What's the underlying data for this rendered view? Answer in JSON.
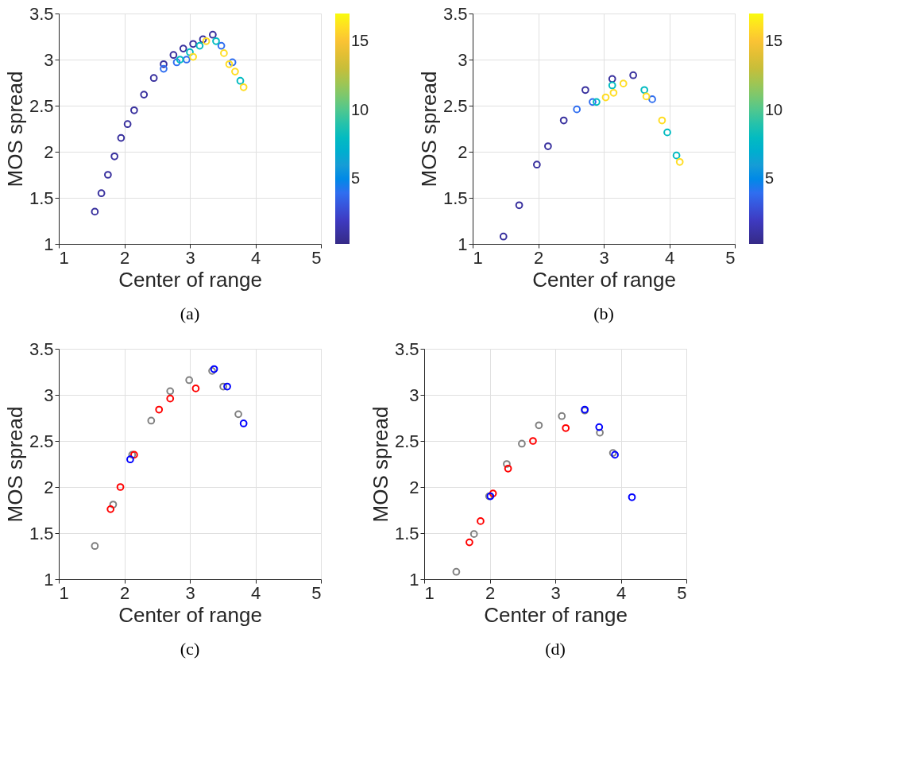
{
  "chart_data": [
    {
      "type": "scatter",
      "xlabel": "Center of range",
      "ylabel": "MOS spread",
      "annotations": [
        "(a)"
      ],
      "xlim": [
        1,
        5
      ],
      "ylim": [
        1,
        3.5
      ],
      "xticks": [
        1,
        2,
        3,
        4,
        5
      ],
      "yticks": [
        1,
        1.5,
        2,
        2.5,
        3,
        3.5
      ],
      "grid": true,
      "marker": "circle",
      "clim": [
        0.3,
        17
      ],
      "cticks": [
        5,
        10,
        15
      ],
      "x": [
        1.55,
        1.65,
        1.75,
        1.85,
        1.95,
        2.05,
        2.15,
        2.3,
        2.45,
        2.6,
        2.75,
        2.9,
        3.05,
        3.2,
        3.35,
        2.6,
        2.8,
        2.95,
        2.85,
        3.0,
        3.15,
        3.05,
        3.25,
        3.48,
        3.65,
        3.4,
        3.52,
        3.6,
        3.69,
        3.77,
        3.82
      ],
      "values": [
        1.35,
        1.55,
        1.75,
        1.95,
        2.15,
        2.3,
        2.45,
        2.62,
        2.8,
        2.95,
        3.05,
        3.12,
        3.17,
        3.22,
        3.27,
        2.9,
        2.97,
        3.0,
        3.0,
        3.08,
        3.15,
        3.03,
        3.2,
        3.15,
        2.97,
        3.2,
        3.07,
        2.95,
        2.87,
        2.77,
        2.7
      ],
      "cvalues": [
        1,
        1,
        1,
        1,
        1,
        1,
        1,
        1,
        1,
        1,
        1,
        1,
        1,
        1,
        1,
        4,
        4,
        4,
        8,
        8,
        8,
        16,
        16,
        4,
        4,
        8,
        16,
        16,
        16,
        8,
        16
      ]
    },
    {
      "type": "scatter",
      "xlabel": "Center of range",
      "ylabel": "MOS spread",
      "annotations": [
        "(b)"
      ],
      "xlim": [
        1,
        5
      ],
      "ylim": [
        1,
        3.5
      ],
      "xticks": [
        1,
        2,
        3,
        4,
        5
      ],
      "yticks": [
        1,
        1.5,
        2,
        2.5,
        3,
        3.5
      ],
      "grid": true,
      "marker": "circle",
      "clim": [
        0.3,
        17
      ],
      "cticks": [
        5,
        10,
        15
      ],
      "x": [
        1.47,
        1.71,
        1.98,
        2.15,
        2.39,
        2.72,
        3.13,
        3.45,
        2.59,
        2.83,
        2.89,
        3.13,
        3.03,
        3.15,
        3.3,
        3.62,
        3.74,
        3.65,
        3.89,
        3.97,
        4.11,
        4.16
      ],
      "values": [
        1.08,
        1.42,
        1.86,
        2.06,
        2.34,
        2.67,
        2.79,
        2.83,
        2.46,
        2.54,
        2.54,
        2.72,
        2.59,
        2.64,
        2.74,
        2.67,
        2.57,
        2.6,
        2.34,
        2.21,
        1.96,
        1.89
      ],
      "cvalues": [
        1,
        1,
        1,
        1,
        1,
        1,
        1,
        1,
        4,
        4,
        8,
        8,
        16,
        16,
        16,
        8,
        4,
        16,
        16,
        8,
        8,
        16
      ]
    },
    {
      "type": "scatter",
      "xlabel": "Center of range",
      "ylabel": "MOS spread",
      "annotations": [
        "(c)"
      ],
      "xlim": [
        1,
        5
      ],
      "ylim": [
        1,
        3.5
      ],
      "xticks": [
        1,
        2,
        3,
        4,
        5
      ],
      "yticks": [
        1,
        1.5,
        2,
        2.5,
        3,
        3.5
      ],
      "grid": true,
      "marker": "circle",
      "series": [
        {
          "color": "#808080",
          "x": [
            1.55,
            1.83,
            2.12,
            2.41,
            2.7,
            2.99,
            3.34,
            3.51,
            3.74
          ],
          "values": [
            1.36,
            1.81,
            2.35,
            2.72,
            3.04,
            3.16,
            3.26,
            3.09,
            2.79
          ]
        },
        {
          "color": "#ff0000",
          "x": [
            1.79,
            1.94,
            2.15,
            2.53,
            2.7,
            3.09
          ],
          "values": [
            1.76,
            2.0,
            2.35,
            2.84,
            2.96,
            3.07
          ]
        },
        {
          "color": "#0000ff",
          "x": [
            2.09,
            3.37,
            3.57,
            3.82
          ],
          "values": [
            2.3,
            3.28,
            3.09,
            2.69
          ]
        }
      ]
    },
    {
      "type": "scatter",
      "xlabel": "Center of range",
      "ylabel": "MOS spread",
      "annotations": [
        "(d)"
      ],
      "xlim": [
        1,
        5
      ],
      "ylim": [
        1,
        3.5
      ],
      "xticks": [
        1,
        2,
        3,
        4,
        5
      ],
      "yticks": [
        1,
        1.5,
        2,
        2.5,
        3,
        3.5
      ],
      "grid": true,
      "marker": "circle",
      "series": [
        {
          "color": "#808080",
          "x": [
            1.49,
            1.76,
            1.99,
            2.26,
            2.49,
            2.75,
            3.1,
            3.45,
            3.68,
            3.88
          ],
          "values": [
            1.08,
            1.49,
            1.9,
            2.25,
            2.47,
            2.67,
            2.77,
            2.83,
            2.59,
            2.37
          ]
        },
        {
          "color": "#ff0000",
          "x": [
            1.69,
            1.86,
            2.05,
            2.28,
            2.66,
            3.16
          ],
          "values": [
            1.4,
            1.63,
            1.93,
            2.2,
            2.5,
            2.64
          ]
        },
        {
          "color": "#0000ff",
          "x": [
            2.01,
            3.45,
            3.67,
            3.91,
            4.17
          ],
          "values": [
            1.9,
            2.84,
            2.65,
            2.35,
            1.89
          ]
        }
      ]
    }
  ]
}
